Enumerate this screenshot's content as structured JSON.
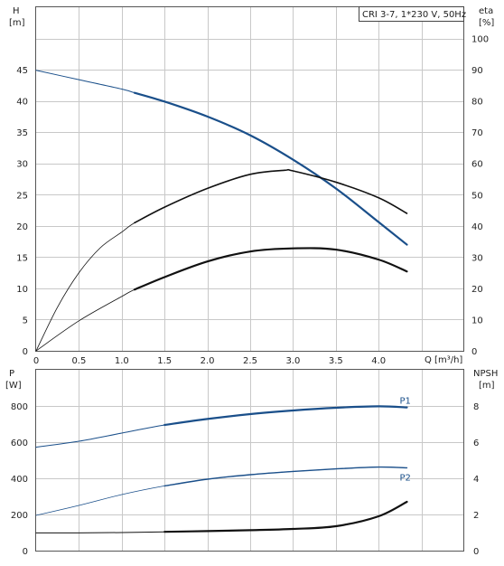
{
  "legend": {
    "text": "CRI 3-7, 1*230 V, 50Hz"
  },
  "colors": {
    "blue": "#1a4f8a",
    "black": "#111111",
    "grid": "#c8c8c8"
  },
  "chart_data": [
    {
      "type": "line",
      "panel": "top",
      "xlabel": "Q [m³/h]",
      "ylabel_left": [
        "H",
        "[m]"
      ],
      "ylabel_right": [
        "eta",
        "[%]"
      ],
      "xlim": [
        0,
        5
      ],
      "ylim_left": [
        0,
        55
      ],
      "ylim_right": [
        0,
        110
      ],
      "x_ticks": [
        "0",
        "0.5",
        "1.0",
        "1.5",
        "2.0",
        "2.5",
        "3.0",
        "3.5",
        "4.0"
      ],
      "y_ticks_left": [
        "0",
        "5",
        "10",
        "15",
        "20",
        "25",
        "30",
        "35",
        "40",
        "45"
      ],
      "y_ticks_right": [
        "0",
        "10",
        "20",
        "30",
        "40",
        "50",
        "60",
        "70",
        "80",
        "90",
        "100"
      ],
      "series": [
        {
          "key": "H",
          "axis": "left",
          "color": "#1a4f8a",
          "width": 1,
          "op_start": 1.15,
          "op_width": 2.2,
          "x": [
            0,
            0.5,
            1.0,
            1.15,
            1.5,
            2.0,
            2.5,
            3.0,
            3.5,
            4.0,
            4.33
          ],
          "y": [
            44.9,
            43.4,
            41.9,
            41.3,
            39.9,
            37.5,
            34.5,
            30.6,
            26.0,
            20.6,
            17.0
          ]
        },
        {
          "key": "eta",
          "axis": "right",
          "color": "#111111",
          "width": 0.8,
          "op_start": 1.15,
          "op_width": 1.6,
          "x": [
            0,
            0.25,
            0.5,
            0.75,
            1.0,
            1.15,
            1.5,
            2.0,
            2.5,
            2.9,
            3.0,
            3.5,
            4.0,
            4.33
          ],
          "y": [
            0,
            14,
            25,
            33,
            38,
            41,
            46,
            52,
            56.5,
            57.8,
            57.6,
            54,
            49,
            44
          ]
        },
        {
          "key": "eta_2",
          "axis": "left",
          "color": "#111111",
          "width": 0.8,
          "op_start": 1.15,
          "op_width": 2.2,
          "x": [
            0,
            0.5,
            1.0,
            1.15,
            1.5,
            2.0,
            2.5,
            3.0,
            3.5,
            4.0,
            4.33
          ],
          "y": [
            0,
            4.8,
            8.7,
            9.8,
            11.8,
            14.3,
            15.9,
            16.4,
            16.2,
            14.6,
            12.7
          ]
        }
      ]
    },
    {
      "type": "line",
      "panel": "bottom",
      "xlim": [
        0,
        5
      ],
      "ylabel_left": [
        "P",
        "[W]"
      ],
      "ylabel_right": [
        "NPSH",
        "[m]"
      ],
      "ylim_left": [
        0,
        1000
      ],
      "ylim_right": [
        0,
        10
      ],
      "y_ticks_left": [
        "0",
        "200",
        "400",
        "600",
        "800"
      ],
      "y_ticks_right": [
        "0",
        "2",
        "4",
        "6",
        "8"
      ],
      "series": [
        {
          "name": "P1",
          "axis": "left",
          "color": "#1a4f8a",
          "width": 1,
          "op_start": 1.15,
          "op_width": 2.2,
          "x": [
            0,
            0.5,
            1.0,
            1.5,
            2.0,
            2.5,
            3.0,
            3.5,
            4.0,
            4.33
          ],
          "y": [
            572,
            605,
            650,
            695,
            728,
            755,
            775,
            790,
            798,
            792
          ]
        },
        {
          "name": "P2",
          "axis": "left",
          "color": "#1a4f8a",
          "width": 0.8,
          "op_start": 1.15,
          "op_width": 1.4,
          "x": [
            0,
            0.5,
            1.0,
            1.5,
            2.0,
            2.5,
            3.0,
            3.5,
            4.0,
            4.33
          ],
          "y": [
            195,
            250,
            310,
            358,
            395,
            420,
            438,
            452,
            462,
            458
          ]
        },
        {
          "key": "NPSH",
          "axis": "right",
          "color": "#111111",
          "width": 1,
          "op_start": 1.15,
          "op_width": 2.2,
          "x": [
            0,
            0.5,
            1.0,
            1.5,
            2.0,
            2.5,
            3.0,
            3.5,
            4.0,
            4.33
          ],
          "y": [
            0.98,
            0.98,
            1.0,
            1.04,
            1.08,
            1.13,
            1.2,
            1.35,
            1.9,
            2.7
          ]
        }
      ]
    }
  ]
}
